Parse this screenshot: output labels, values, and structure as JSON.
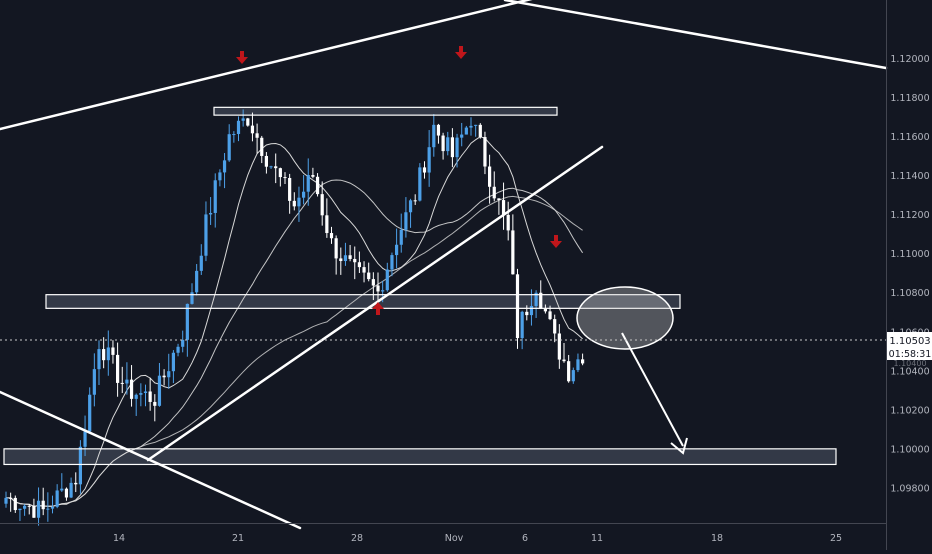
{
  "chart_data": {
    "type": "candlestick",
    "title": "",
    "ylim": [
      1.0962,
      1.123
    ],
    "y_ticks": [
      "1.12000",
      "1.11800",
      "1.11600",
      "1.11400",
      "1.11200",
      "1.11000",
      "1.10800",
      "1.10600",
      "1.10400",
      "1.10200",
      "1.10000",
      "1.09800"
    ],
    "x_ticks": [
      "14",
      "21",
      "28",
      "Nov",
      "6",
      "11",
      "18",
      "25"
    ],
    "current_price": "1.10503",
    "countdown": "01:58:31",
    "hidden_tick": "1.10400",
    "series": [
      {
        "name": "",
        "kind": "candles",
        "bars": 125,
        "start": 1.0975,
        "end": 1.1049,
        "anchors": [
          [
            0,
            1.0975
          ],
          [
            8,
            1.0968
          ],
          [
            15,
            1.0985
          ],
          [
            20,
            1.1055
          ],
          [
            26,
            1.103
          ],
          [
            32,
            1.1026
          ],
          [
            38,
            1.106
          ],
          [
            43,
            1.1115
          ],
          [
            48,
            1.116
          ],
          [
            52,
            1.117
          ],
          [
            56,
            1.115
          ],
          [
            62,
            1.1125
          ],
          [
            66,
            1.114
          ],
          [
            70,
            1.1105
          ],
          [
            75,
            1.109
          ],
          [
            80,
            1.108
          ],
          [
            84,
            1.1108
          ],
          [
            88,
            1.113
          ],
          [
            92,
            1.1165
          ],
          [
            96,
            1.115
          ],
          [
            100,
            1.117
          ],
          [
            104,
            1.114
          ],
          [
            108,
            1.111
          ],
          [
            110,
            1.106
          ],
          [
            114,
            1.1085
          ],
          [
            118,
            1.1055
          ],
          [
            121,
            1.104
          ],
          [
            124,
            1.1049
          ]
        ]
      },
      {
        "name": "",
        "kind": "ma-fast"
      },
      {
        "name": "",
        "kind": "ma-slow"
      },
      {
        "name": "",
        "kind": "ma-long"
      }
    ],
    "zones": [
      {
        "from": 1.1175,
        "to": 1.1171,
        "label": ""
      },
      {
        "from": 1.1079,
        "to": 1.1072,
        "label": ""
      },
      {
        "from": 1.1,
        "to": 1.0992,
        "label": ""
      }
    ],
    "annotations": {
      "down_arrows": 3,
      "up_arrows": 1,
      "trendlines": 4,
      "ellipse": true,
      "projection_arrow": true
    },
    "grid": false,
    "colors": {
      "background": "#131722",
      "candle_up": "#4da0e8",
      "candle_down": "#ffffff",
      "ma": "#d8d8d8",
      "zone_fill": "#3a3f4e",
      "zone_stroke": "#ffffff",
      "marker": "#c0161b",
      "axis_text": "#b2b5be",
      "price_tag_bg": "#ffffff",
      "price_tag_text": "#131722"
    }
  }
}
